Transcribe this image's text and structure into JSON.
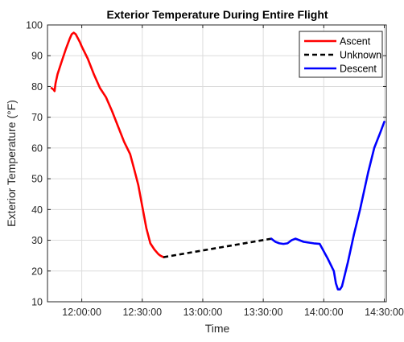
{
  "chart_data": {
    "type": "line",
    "title": "Exterior Temperature During Entire Flight",
    "xlabel": "Time",
    "ylabel": "Exterior Temperature (°F)",
    "xlim": [
      "11:43:00",
      "14:31:00"
    ],
    "ylim": [
      10,
      100
    ],
    "x_ticks": [
      "12:00:00",
      "12:30:00",
      "13:00:00",
      "13:30:00",
      "14:00:00",
      "14:30:00"
    ],
    "y_ticks": [
      10,
      20,
      30,
      40,
      50,
      60,
      70,
      80,
      90,
      100
    ],
    "grid": true,
    "legend_position": "top-right",
    "series": [
      {
        "name": "Ascent",
        "color": "#ff0000",
        "style": "solid",
        "x": [
          "11:45:00",
          "11:46:00",
          "11:46:30",
          "11:47:00",
          "11:48:00",
          "11:50:00",
          "11:52:00",
          "11:54:00",
          "11:55:00",
          "11:56:00",
          "11:57:00",
          "11:59:00",
          "12:00:00",
          "12:03:00",
          "12:06:00",
          "12:09:00",
          "12:12:00",
          "12:15:00",
          "12:18:00",
          "12:21:00",
          "12:24:00",
          "12:26:00",
          "12:28:00",
          "12:30:00",
          "12:32:00",
          "12:34:00",
          "12:36:00",
          "12:38:00",
          "12:39:00",
          "12:40:30"
        ],
        "y": [
          79.5,
          79,
          78.5,
          81,
          84,
          88,
          92,
          95.5,
          97,
          97.5,
          97,
          94.5,
          93,
          89,
          84,
          79.5,
          76.5,
          72,
          67,
          62,
          58,
          53,
          48,
          41,
          34,
          29,
          27,
          25.5,
          25,
          24.5
        ]
      },
      {
        "name": "Unknown",
        "color": "#000000",
        "style": "dashed",
        "x": [
          "12:40:30",
          "13:34:00"
        ],
        "y": [
          24.5,
          30.5
        ]
      },
      {
        "name": "Descent",
        "color": "#0000ff",
        "style": "solid",
        "x": [
          "13:34:00",
          "13:35:00",
          "13:36:00",
          "13:38:00",
          "13:40:00",
          "13:42:00",
          "13:44:00",
          "13:46:00",
          "13:50:00",
          "13:55:00",
          "13:58:00",
          "14:02:00",
          "14:05:00",
          "14:06:00",
          "14:07:00",
          "14:08:00",
          "14:09:00",
          "14:12:00",
          "14:15:00",
          "14:18:00",
          "14:22:00",
          "14:25:00",
          "14:28:00",
          "14:30:00"
        ],
        "y": [
          30.5,
          30,
          29.5,
          29,
          28.8,
          29,
          30,
          30.5,
          29.5,
          29,
          28.8,
          24,
          20,
          16,
          14,
          14,
          15,
          23,
          32,
          40,
          52,
          60,
          65,
          68.5
        ]
      }
    ]
  }
}
